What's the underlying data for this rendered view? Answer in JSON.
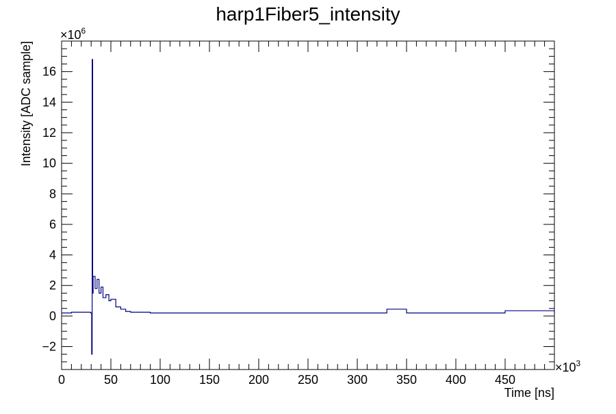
{
  "chart_data": {
    "type": "line",
    "title": "harp1Fiber5_intensity",
    "xlabel": "Time [ns]",
    "ylabel": "Intensity [ADC sample]",
    "x_multiplier": {
      "base": "×10",
      "exp": "3"
    },
    "y_multiplier": {
      "base": "×10",
      "exp": "6"
    },
    "xlim": [
      0,
      500
    ],
    "ylim": [
      -3.5,
      18
    ],
    "x_ticks": [
      0,
      50,
      100,
      150,
      200,
      250,
      300,
      350,
      400,
      450
    ],
    "x_tick_labels": [
      "0",
      "50",
      "100",
      "150",
      "200",
      "250",
      "300",
      "350",
      "400",
      "450"
    ],
    "y_ticks": [
      -2,
      0,
      2,
      4,
      6,
      8,
      10,
      12,
      14,
      16
    ],
    "y_tick_labels": [
      "−2",
      "0",
      "2",
      "4",
      "6",
      "8",
      "10",
      "12",
      "14",
      "16"
    ],
    "grid": false,
    "legend": "none",
    "series": [
      {
        "color": "#000080",
        "x": [
          0,
          10,
          20,
          29.5,
          30.5,
          31,
          31.5,
          32,
          34,
          36,
          38,
          40,
          42,
          45,
          48,
          50,
          55,
          60,
          65,
          70,
          80,
          90,
          100,
          120,
          150,
          200,
          250,
          300,
          330,
          350,
          400,
          450,
          500
        ],
        "y": [
          0.2,
          0.25,
          0.25,
          0.2,
          -2.5,
          16.8,
          1.5,
          2.6,
          1.8,
          2.4,
          1.5,
          1.9,
          1.2,
          1.4,
          1.0,
          1.1,
          0.6,
          0.45,
          0.3,
          0.25,
          0.25,
          0.2,
          0.2,
          0.2,
          0.2,
          0.2,
          0.2,
          0.2,
          0.45,
          0.2,
          0.2,
          0.35,
          0.15
        ]
      }
    ]
  }
}
